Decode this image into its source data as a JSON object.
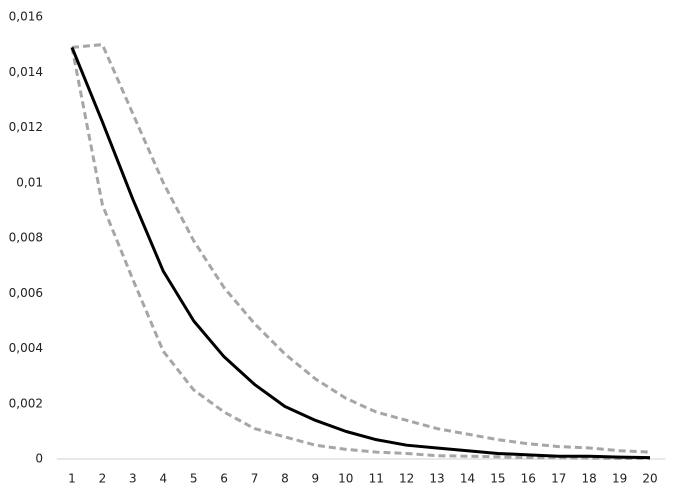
{
  "chart_data": {
    "type": "line",
    "categories": [
      "1",
      "2",
      "3",
      "4",
      "5",
      "6",
      "7",
      "8",
      "9",
      "10",
      "11",
      "12",
      "13",
      "14",
      "15",
      "16",
      "17",
      "18",
      "19",
      "20"
    ],
    "series": [
      {
        "color": "#a6a6a6",
        "dashed": true,
        "values": [
          0.0149,
          0.015,
          0.0125,
          0.01,
          0.0079,
          0.0062,
          0.0049,
          0.0038,
          0.0029,
          0.0022,
          0.0017,
          0.0014,
          0.0011,
          0.0009,
          0.0007,
          0.00055,
          0.00045,
          0.0004,
          0.0003,
          0.00025
        ]
      },
      {
        "color": "#a6a6a6",
        "dashed": true,
        "values": [
          0.0149,
          0.0092,
          0.0065,
          0.0039,
          0.0025,
          0.0017,
          0.0011,
          0.0008,
          0.0005,
          0.00035,
          0.00025,
          0.0002,
          0.00012,
          0.0001,
          8e-05,
          5e-05,
          4e-05,
          3e-05,
          2e-05,
          2e-05
        ]
      },
      {
        "color": "#000000",
        "dashed": false,
        "values": [
          0.0149,
          0.0122,
          0.0094,
          0.0068,
          0.005,
          0.0037,
          0.0027,
          0.0019,
          0.0014,
          0.001,
          0.0007,
          0.0005,
          0.0004,
          0.0003,
          0.0002,
          0.00015,
          0.0001,
          0.0001,
          7e-05,
          5e-05
        ]
      }
    ],
    "ylim": [
      0,
      0.016
    ],
    "yticks": [
      0,
      {
        "value": 0.002,
        "label": "0,002"
      },
      {
        "value": 0.004,
        "label": "0,004"
      },
      {
        "value": 0.006,
        "label": "0,006"
      },
      {
        "value": 0.008,
        "label": "0,008"
      },
      {
        "value": 0.01,
        "label": "0,01"
      },
      {
        "value": 0.012,
        "label": "0,012"
      },
      {
        "value": 0.014,
        "label": "0,014"
      },
      {
        "value": 0.016,
        "label": "0,016"
      }
    ],
    "grid": false
  }
}
